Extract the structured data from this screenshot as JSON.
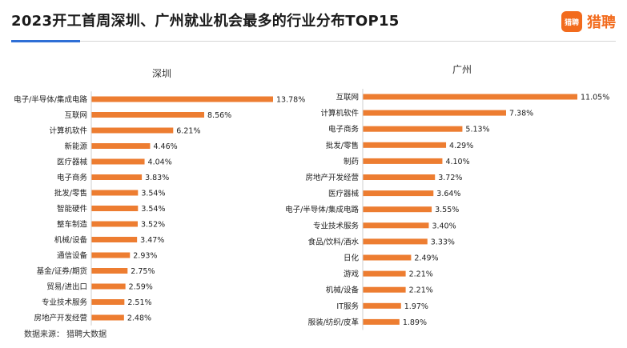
{
  "header": {
    "title": "2023开工首周深圳、广州就业机会最多的行业分布TOP15",
    "logo_badge": "猎聘",
    "logo_text": "猎聘"
  },
  "colors": {
    "bar": "#ed7d31",
    "accent": "#2f6fd6",
    "brand": "#f26b1d"
  },
  "source": "数据来源：  猎聘大数据",
  "chart_data": [
    {
      "type": "bar",
      "orientation": "horizontal",
      "title": "深圳",
      "value_suffix": "%",
      "categories": [
        "电子/半导体/集成电路",
        "互联网",
        "计算机软件",
        "新能源",
        "医疗器械",
        "电子商务",
        "批发/零售",
        "智能硬件",
        "整车制造",
        "机械/设备",
        "通信设备",
        "基金/证券/期货",
        "贸易/进出口",
        "专业技术服务",
        "房地产开发经营"
      ],
      "values": [
        13.78,
        8.56,
        6.21,
        4.46,
        4.04,
        3.83,
        3.54,
        3.54,
        3.52,
        3.47,
        2.93,
        2.75,
        2.59,
        2.51,
        2.48
      ]
    },
    {
      "type": "bar",
      "orientation": "horizontal",
      "title": "广州",
      "value_suffix": "%",
      "categories": [
        "互联网",
        "计算机软件",
        "电子商务",
        "批发/零售",
        "制药",
        "房地产开发经营",
        "医疗器械",
        "电子/半导体/集成电路",
        "专业技术服务",
        "食品/饮料/酒水",
        "日化",
        "游戏",
        "机械/设备",
        "IT服务",
        "服装/纺织/皮革"
      ],
      "values": [
        11.05,
        7.38,
        5.13,
        4.29,
        4.1,
        3.72,
        3.64,
        3.55,
        3.4,
        3.33,
        2.49,
        2.21,
        2.21,
        1.97,
        1.89
      ]
    }
  ]
}
